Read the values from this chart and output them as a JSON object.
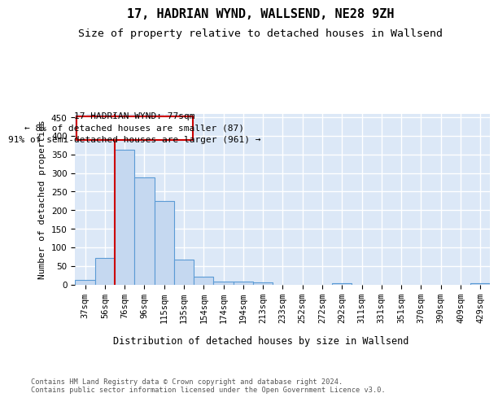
{
  "title": "17, HADRIAN WYND, WALLSEND, NE28 9ZH",
  "subtitle": "Size of property relative to detached houses in Wallsend",
  "xlabel": "Distribution of detached houses by size in Wallsend",
  "ylabel": "Number of detached properties",
  "footnote": "Contains HM Land Registry data © Crown copyright and database right 2024.\nContains public sector information licensed under the Open Government Licence v3.0.",
  "bin_labels": [
    "37sqm",
    "56sqm",
    "76sqm",
    "96sqm",
    "115sqm",
    "135sqm",
    "154sqm",
    "174sqm",
    "194sqm",
    "213sqm",
    "233sqm",
    "252sqm",
    "272sqm",
    "292sqm",
    "311sqm",
    "331sqm",
    "351sqm",
    "370sqm",
    "390sqm",
    "409sqm",
    "429sqm"
  ],
  "bar_values": [
    13,
    72,
    363,
    288,
    224,
    67,
    22,
    7,
    7,
    5,
    0,
    0,
    0,
    4,
    0,
    0,
    0,
    0,
    0,
    0,
    4
  ],
  "bar_color": "#c5d8f0",
  "bar_edge_color": "#5b9bd5",
  "vline_color": "#cc0000",
  "annotation_text": "17 HADRIAN WYND: 77sqm\n← 8% of detached houses are smaller (87)\n91% of semi-detached houses are larger (961) →",
  "annotation_box_color": "#cc0000",
  "ylim": [
    0,
    460
  ],
  "background_color": "#dce8f7",
  "grid_color": "#ffffff",
  "title_fontsize": 11,
  "subtitle_fontsize": 9.5,
  "axis_label_fontsize": 8.5,
  "tick_fontsize": 7.5,
  "annotation_fontsize": 8,
  "ylabel_fontsize": 8
}
